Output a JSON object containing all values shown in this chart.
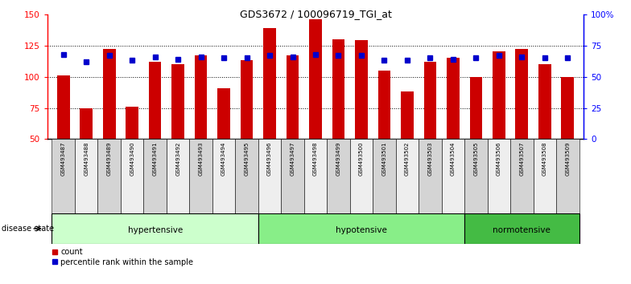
{
  "title": "GDS3672 / 100096719_TGI_at",
  "samples": [
    "GSM493487",
    "GSM493488",
    "GSM493489",
    "GSM493490",
    "GSM493491",
    "GSM493492",
    "GSM493493",
    "GSM493494",
    "GSM493495",
    "GSM493496",
    "GSM493497",
    "GSM493498",
    "GSM493499",
    "GSM493500",
    "GSM493501",
    "GSM493502",
    "GSM493503",
    "GSM493504",
    "GSM493505",
    "GSM493506",
    "GSM493507",
    "GSM493508",
    "GSM493509"
  ],
  "counts": [
    101,
    75,
    122,
    76,
    112,
    110,
    117,
    91,
    113,
    139,
    117,
    146,
    130,
    129,
    105,
    88,
    112,
    115,
    100,
    120,
    122,
    110,
    100
  ],
  "percentiles": [
    68,
    62,
    67,
    63,
    66,
    64,
    66,
    65,
    65,
    67,
    66,
    68,
    67,
    67,
    63,
    63,
    65,
    64,
    65,
    67,
    66,
    65,
    65
  ],
  "groups": [
    {
      "label": "hypertensive",
      "start": 0,
      "end": 9,
      "color": "#ccffcc"
    },
    {
      "label": "hypotensive",
      "start": 9,
      "end": 18,
      "color": "#88ee88"
    },
    {
      "label": "normotensive",
      "start": 18,
      "end": 23,
      "color": "#44bb44"
    }
  ],
  "bar_color": "#cc0000",
  "marker_color": "#0000cc",
  "ylim_left": [
    50,
    150
  ],
  "ylim_right": [
    0,
    100
  ],
  "yticks_left": [
    50,
    75,
    100,
    125,
    150
  ],
  "yticks_right": [
    0,
    25,
    50,
    75,
    100
  ],
  "ytick_labels_right": [
    "0",
    "25",
    "50",
    "75",
    "100%"
  ],
  "grid_lines": [
    75,
    100,
    125
  ],
  "background_color": "#ffffff",
  "tick_bg_even": "#d4d4d4",
  "tick_bg_odd": "#eeeeee"
}
